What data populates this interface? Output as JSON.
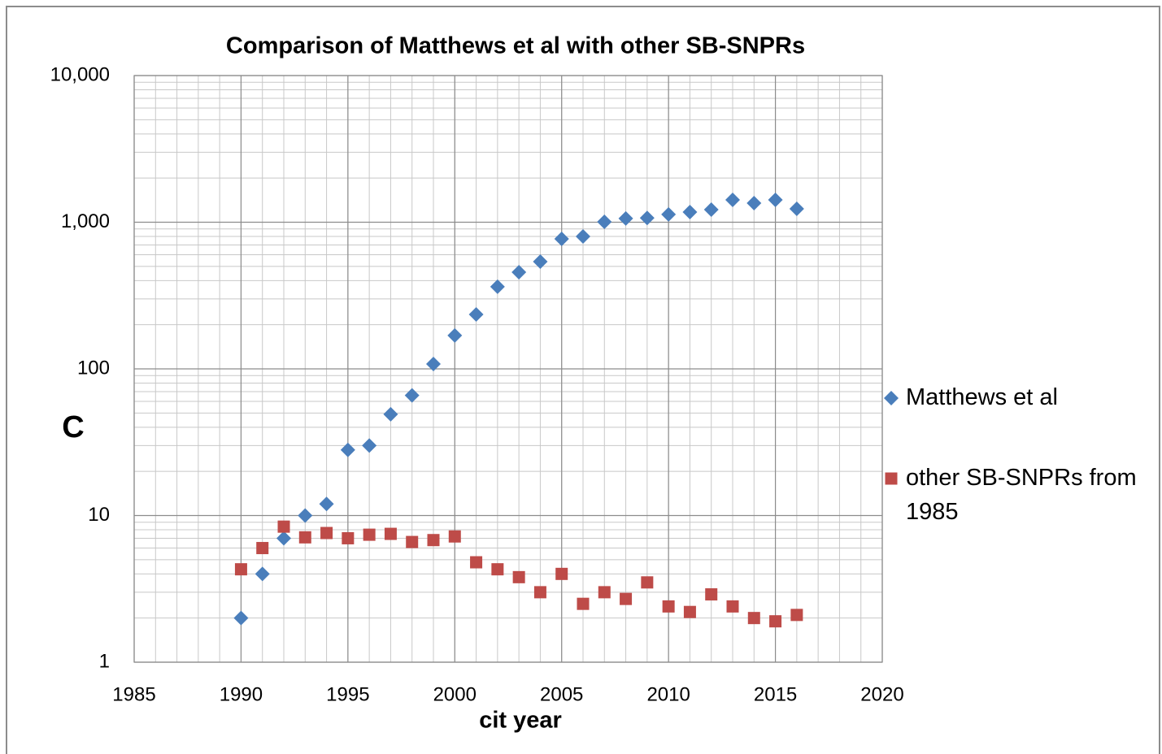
{
  "chart_data": {
    "type": "scatter",
    "title": "Comparison  of Matthews et al with other SB-SNPRs",
    "x_label": "cit year",
    "y_label": "C",
    "log_y": true,
    "grid": true,
    "minor_grid": true,
    "legend": "right",
    "xlim": [
      1985,
      2020
    ],
    "xticks": [
      1985,
      1990,
      1995,
      2000,
      2005,
      2010,
      2015,
      2020
    ],
    "ylim": [
      1,
      10000
    ],
    "yticks": [
      {
        "value": 10000,
        "label": "10,000"
      },
      {
        "value": 1000,
        "label": "1,000"
      },
      100,
      10,
      1
    ],
    "x": [
      1990,
      1991,
      1992,
      1993,
      1994,
      1995,
      1996,
      1997,
      1998,
      1999,
      2000,
      2001,
      2002,
      2003,
      2004,
      2005,
      2006,
      2007,
      2008,
      2009,
      2010,
      2011,
      2012,
      2013,
      2014,
      2015,
      2016
    ],
    "series": [
      {
        "name": "Matthews et al",
        "color": "#4a7ebb",
        "marker": "diamond",
        "values": [
          2.0,
          4.0,
          7.0,
          10,
          12,
          28,
          30,
          49,
          66,
          108,
          169,
          235,
          363,
          456,
          539,
          770,
          800,
          1007,
          1060,
          1070,
          1130,
          1173,
          1218,
          1420,
          1350,
          1420,
          1235
        ]
      },
      {
        "name": "other SB-SNPRs from 1985",
        "color": "#be4b48",
        "marker": "square",
        "values": [
          4.3,
          6.0,
          8.4,
          7.1,
          7.6,
          7.0,
          7.4,
          7.5,
          6.6,
          6.8,
          7.2,
          4.8,
          4.3,
          3.8,
          3.0,
          4.0,
          2.5,
          3.0,
          2.7,
          3.5,
          2.4,
          2.2,
          2.9,
          2.4,
          2.0,
          1.9,
          2.1
        ]
      }
    ]
  }
}
